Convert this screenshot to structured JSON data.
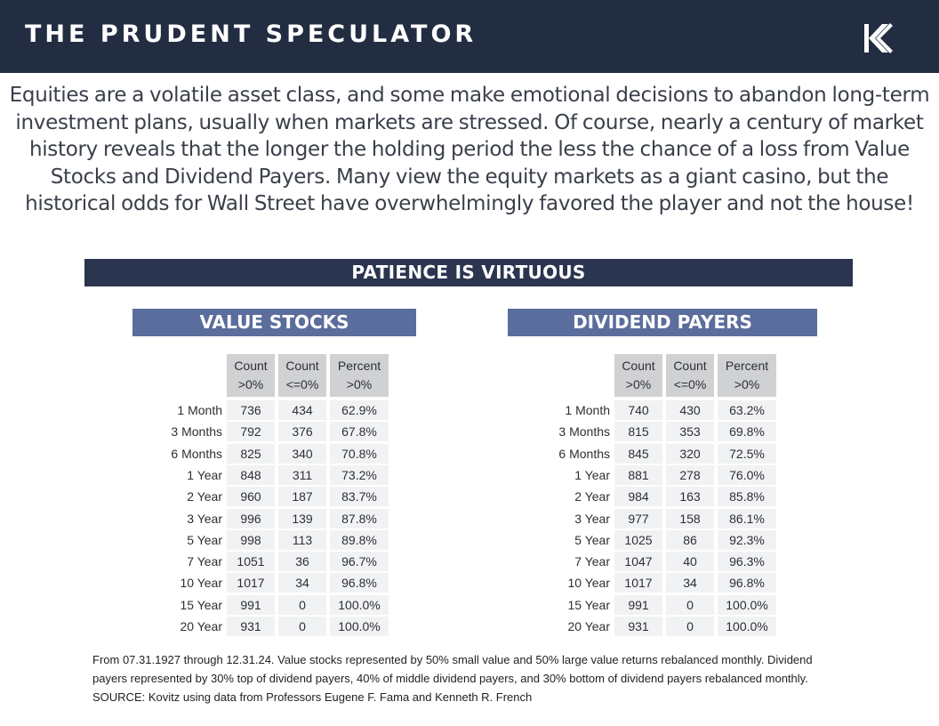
{
  "header": {
    "brand": "THE PRUDENT SPECULATOR",
    "logo_icon": "kovitz-k-logo-icon"
  },
  "intro_text": "Equities are a volatile asset class, and some make emotional decisions to abandon long-term investment plans, usually when markets are stressed. Of course, nearly a century of market history reveals that the longer the holding period the less the chance of a loss from Value Stocks and Dividend Payers. Many view the equity markets as a giant casino, but the historical odds for Wall Street have overwhelmingly favored the player and not the house!",
  "banner_title": "PATIENCE IS VIRTUOUS",
  "colors": {
    "topbar": "#222d42",
    "banner": "#2b3550",
    "section": "#5b6d9c",
    "header_cell": "#d0d1d3",
    "data_cell": "#f1f2f3"
  },
  "chart_data": [
    {
      "type": "table",
      "title": "VALUE STOCKS",
      "columns": [
        "Count >0%",
        "Count <=0%",
        "Percent >0%"
      ],
      "column_lines": [
        [
          "Count",
          ">0%"
        ],
        [
          "Count",
          "<=0%"
        ],
        [
          "Percent",
          ">0%"
        ]
      ],
      "rows": [
        {
          "period": "1 Month",
          "values": [
            "736",
            "434",
            "62.9%"
          ]
        },
        {
          "period": "3 Months",
          "values": [
            "792",
            "376",
            "67.8%"
          ]
        },
        {
          "period": "6 Months",
          "values": [
            "825",
            "340",
            "70.8%"
          ]
        },
        {
          "period": "1 Year",
          "values": [
            "848",
            "311",
            "73.2%"
          ]
        },
        {
          "period": "2 Year",
          "values": [
            "960",
            "187",
            "83.7%"
          ]
        },
        {
          "period": "3 Year",
          "values": [
            "996",
            "139",
            "87.8%"
          ]
        },
        {
          "period": "5 Year",
          "values": [
            "998",
            "113",
            "89.8%"
          ]
        },
        {
          "period": "7 Year",
          "values": [
            "1051",
            "36",
            "96.7%"
          ]
        },
        {
          "period": "10 Year",
          "values": [
            "1017",
            "34",
            "96.8%"
          ]
        },
        {
          "period": "15 Year",
          "values": [
            "991",
            "0",
            "100.0%"
          ]
        },
        {
          "period": "20 Year",
          "values": [
            "931",
            "0",
            "100.0%"
          ]
        }
      ]
    },
    {
      "type": "table",
      "title": "DIVIDEND PAYERS",
      "columns": [
        "Count >0%",
        "Count <=0%",
        "Percent >0%"
      ],
      "column_lines": [
        [
          "Count",
          ">0%"
        ],
        [
          "Count",
          "<=0%"
        ],
        [
          "Percent",
          ">0%"
        ]
      ],
      "rows": [
        {
          "period": "1 Month",
          "values": [
            "740",
            "430",
            "63.2%"
          ]
        },
        {
          "period": "3 Months",
          "values": [
            "815",
            "353",
            "69.8%"
          ]
        },
        {
          "period": "6 Months",
          "values": [
            "845",
            "320",
            "72.5%"
          ]
        },
        {
          "period": "1 Year",
          "values": [
            "881",
            "278",
            "76.0%"
          ]
        },
        {
          "period": "2 Year",
          "values": [
            "984",
            "163",
            "85.8%"
          ]
        },
        {
          "period": "3 Year",
          "values": [
            "977",
            "158",
            "86.1%"
          ]
        },
        {
          "period": "5 Year",
          "values": [
            "1025",
            "86",
            "92.3%"
          ]
        },
        {
          "period": "7 Year",
          "values": [
            "1047",
            "40",
            "96.3%"
          ]
        },
        {
          "period": "10 Year",
          "values": [
            "1017",
            "34",
            "96.8%"
          ]
        },
        {
          "period": "15 Year",
          "values": [
            "991",
            "0",
            "100.0%"
          ]
        },
        {
          "period": "20 Year",
          "values": [
            "931",
            "0",
            "100.0%"
          ]
        }
      ]
    }
  ],
  "footnote": "From 07.31.1927 through 12.31.24. Value stocks represented by 50% small value and 50% large value returns rebalanced monthly.  Dividend payers represented by 30% top of dividend payers, 40% of middle dividend payers, and 30% bottom of dividend payers rebalanced monthly. SOURCE: Kovitz using data from Professors Eugene F. Fama and Kenneth R. French"
}
